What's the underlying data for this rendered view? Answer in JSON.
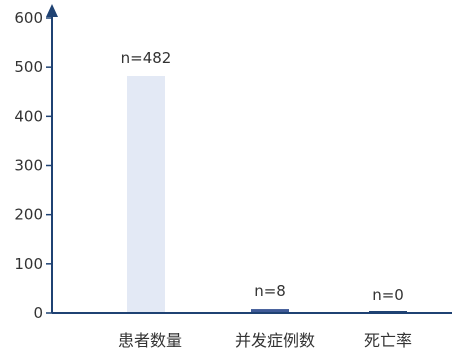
{
  "chart_data": {
    "type": "bar",
    "title": "",
    "xlabel": "",
    "ylabel": "",
    "categories": [
      "患者数量",
      "并发症例数",
      "死亡率"
    ],
    "values": [
      482,
      8,
      0
    ],
    "data_labels": [
      "n=482",
      "n=8",
      "n=0"
    ],
    "ylim": [
      0,
      600
    ],
    "yticks": [
      0,
      100,
      200,
      300,
      400,
      500,
      600
    ],
    "grid": false,
    "legend": "none",
    "bar_colors": [
      "#e3e9f5",
      "#3f5a97",
      "#1f4273"
    ],
    "axis_color": "#1f4273"
  }
}
